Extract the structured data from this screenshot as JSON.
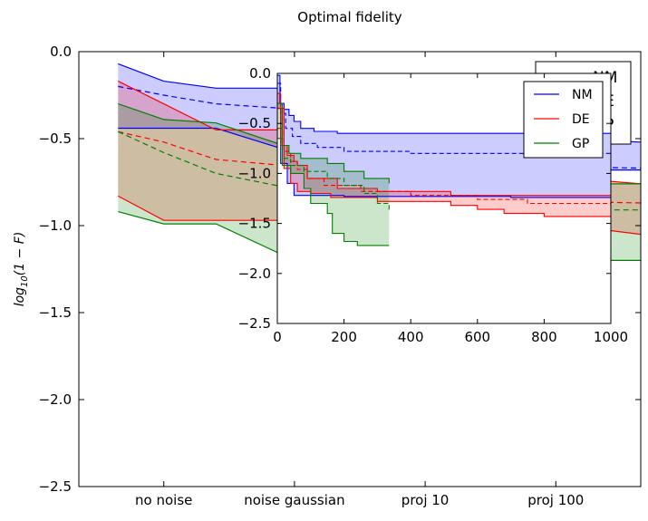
{
  "colors": {
    "NM": "#0000ff",
    "DE": "#ff0000",
    "GP": "#008000",
    "NM_fill": "#c5c5ff",
    "DE_fill": "#ffc8c8",
    "GP_fill": "#c8e6c8",
    "overlap_fill": "#c7b9a2",
    "overlap_ng": "#b7bfd6"
  },
  "chart_data": [
    {
      "type": "line",
      "role": "main",
      "title": "Optimal fidelity",
      "xlabel": "",
      "ylabel": "log10(1 − F)",
      "ylabel_parts": {
        "base": "log",
        "sub": "10",
        "expr": "(1 − F)"
      },
      "categories": [
        "no noise",
        "noise gaussian",
        "proj 10",
        "proj 100"
      ],
      "x": [
        0,
        1,
        2,
        3
      ],
      "xlim": [
        -0.65,
        3.65
      ],
      "ylim": [
        -2.5,
        0.0
      ],
      "yticks": [
        0.0,
        -0.5,
        -1.0,
        -1.5,
        -2.0,
        -2.5
      ],
      "ytick_labels": [
        "0.0",
        "−0.5",
        "−1.0",
        "−1.5",
        "−2.0",
        "−2.5"
      ],
      "grid": false,
      "legend": {
        "position": "upper-right",
        "entries": [
          "NM",
          "DE",
          "GP"
        ]
      },
      "series": [
        {
          "name": "NM",
          "x_points": [
            -0.35,
            0.0,
            0.4,
            1.0,
            1.4,
            2.0,
            2.4,
            3.0,
            3.65
          ],
          "upper": [
            -0.07,
            -0.17,
            -0.21,
            -0.21,
            -0.37,
            -0.45,
            -0.45,
            -0.5,
            -0.52
          ],
          "mean": [
            -0.2,
            -0.25,
            -0.3,
            -0.33,
            -0.52,
            -0.6,
            -0.62,
            -0.66,
            -0.67
          ],
          "lower": [
            -0.44,
            -0.44,
            -0.44,
            -0.58,
            -0.62,
            -0.68,
            -0.68,
            -0.68,
            -0.68
          ]
        },
        {
          "name": "DE",
          "x_points": [
            -0.35,
            0.0,
            0.4,
            1.0,
            1.4,
            2.0,
            2.4,
            3.0,
            3.65
          ],
          "upper": [
            -0.17,
            -0.3,
            -0.45,
            -0.45,
            -0.58,
            -0.68,
            -0.7,
            -0.72,
            -0.76
          ],
          "mean": [
            -0.46,
            -0.52,
            -0.62,
            -0.66,
            -0.77,
            -0.83,
            -0.84,
            -0.86,
            -0.87
          ],
          "lower": [
            -0.83,
            -0.97,
            -0.97,
            -0.97,
            -0.97,
            -0.97,
            -0.99,
            -0.99,
            -1.05
          ]
        },
        {
          "name": "GP",
          "x_points": [
            -0.35,
            0.0,
            0.4,
            1.0,
            1.4,
            2.0,
            2.4,
            3.0,
            3.65
          ],
          "upper": [
            -0.3,
            -0.39,
            -0.41,
            -0.56,
            -0.62,
            -0.7,
            -0.72,
            -0.76,
            -0.76
          ],
          "mean": [
            -0.46,
            -0.58,
            -0.7,
            -0.79,
            -0.83,
            -0.89,
            -0.89,
            -0.91,
            -0.91
          ],
          "lower": [
            -0.92,
            -0.99,
            -0.99,
            -1.2,
            -1.2,
            -1.2,
            -1.2,
            -1.2,
            -1.2
          ]
        }
      ]
    },
    {
      "type": "line",
      "role": "inset",
      "title": "",
      "xlabel": "",
      "ylabel": "",
      "xlim": [
        0,
        1000
      ],
      "ylim": [
        -2.5,
        0.0
      ],
      "xticks": [
        0,
        200,
        400,
        600,
        800,
        1000
      ],
      "xtick_labels": [
        "0",
        "200",
        "400",
        "600",
        "800",
        "1000"
      ],
      "yticks": [
        0.0,
        -0.5,
        -1.0,
        -1.5,
        -2.0,
        -2.5
      ],
      "ytick_labels": [
        "0.0",
        "−0.5",
        "−1.0",
        "−1.5",
        "−2.0",
        "−2.5"
      ],
      "grid": false,
      "legend": {
        "position": "upper-right",
        "entries": [
          "NM",
          "DE",
          "GP"
        ]
      },
      "series": [
        {
          "name": "NM",
          "band_end": 1000,
          "upper": [
            [
              0,
              -0.02
            ],
            [
              8,
              -0.3
            ],
            [
              20,
              -0.36
            ],
            [
              35,
              -0.42
            ],
            [
              50,
              -0.48
            ],
            [
              70,
              -0.55
            ],
            [
              110,
              -0.58
            ],
            [
              180,
              -0.6
            ],
            [
              1000,
              -0.6
            ]
          ],
          "mean": [
            [
              0,
              -0.1
            ],
            [
              10,
              -0.4
            ],
            [
              25,
              -0.55
            ],
            [
              45,
              -0.63
            ],
            [
              70,
              -0.7
            ],
            [
              120,
              -0.74
            ],
            [
              200,
              -0.78
            ],
            [
              400,
              -0.8
            ],
            [
              1000,
              -0.83
            ]
          ],
          "lower": [
            [
              0,
              -0.35
            ],
            [
              10,
              -0.9
            ],
            [
              30,
              -1.1
            ],
            [
              50,
              -1.22
            ],
            [
              200,
              -1.23
            ],
            [
              500,
              -1.23
            ],
            [
              700,
              -1.24
            ],
            [
              1000,
              -1.24
            ]
          ]
        },
        {
          "name": "DE",
          "band_end": 1000,
          "upper": [
            [
              0,
              -0.2
            ],
            [
              10,
              -0.72
            ],
            [
              30,
              -0.82
            ],
            [
              50,
              -0.88
            ],
            [
              60,
              -0.92
            ],
            [
              90,
              -1.05
            ],
            [
              180,
              -1.15
            ],
            [
              300,
              -1.18
            ],
            [
              520,
              -1.18
            ],
            [
              520,
              -1.22
            ],
            [
              1000,
              -1.22
            ]
          ],
          "mean": [
            [
              0,
              -0.35
            ],
            [
              20,
              -0.78
            ],
            [
              40,
              -0.88
            ],
            [
              60,
              -0.96
            ],
            [
              90,
              -1.05
            ],
            [
              140,
              -1.12
            ],
            [
              250,
              -1.18
            ],
            [
              400,
              -1.22
            ],
            [
              600,
              -1.26
            ],
            [
              750,
              -1.3
            ],
            [
              1000,
              -1.33
            ]
          ],
          "lower": [
            [
              0,
              -0.35
            ],
            [
              20,
              -0.95
            ],
            [
              40,
              -1.1
            ],
            [
              60,
              -1.18
            ],
            [
              100,
              -1.2
            ],
            [
              160,
              -1.24
            ],
            [
              300,
              -1.28
            ],
            [
              520,
              -1.32
            ],
            [
              600,
              -1.36
            ],
            [
              680,
              -1.4
            ],
            [
              800,
              -1.43
            ],
            [
              1000,
              -1.43
            ]
          ]
        },
        {
          "name": "GP",
          "band_end": 335,
          "upper": [
            [
              0,
              -0.3
            ],
            [
              15,
              -0.72
            ],
            [
              35,
              -0.8
            ],
            [
              70,
              -0.85
            ],
            [
              150,
              -0.9
            ],
            [
              200,
              -0.98
            ],
            [
              260,
              -1.05
            ],
            [
              335,
              -1.1
            ]
          ],
          "mean": [
            [
              0,
              -0.55
            ],
            [
              15,
              -0.85
            ],
            [
              40,
              -0.92
            ],
            [
              80,
              -0.98
            ],
            [
              150,
              -1.05
            ],
            [
              200,
              -1.12
            ],
            [
              260,
              -1.2
            ],
            [
              300,
              -1.3
            ],
            [
              335,
              -1.37
            ]
          ],
          "lower": [
            [
              0,
              -0.65
            ],
            [
              15,
              -0.92
            ],
            [
              40,
              -1.0
            ],
            [
              80,
              -1.15
            ],
            [
              100,
              -1.3
            ],
            [
              150,
              -1.4
            ],
            [
              165,
              -1.6
            ],
            [
              200,
              -1.68
            ],
            [
              240,
              -1.72
            ],
            [
              335,
              -1.72
            ]
          ]
        }
      ]
    }
  ]
}
